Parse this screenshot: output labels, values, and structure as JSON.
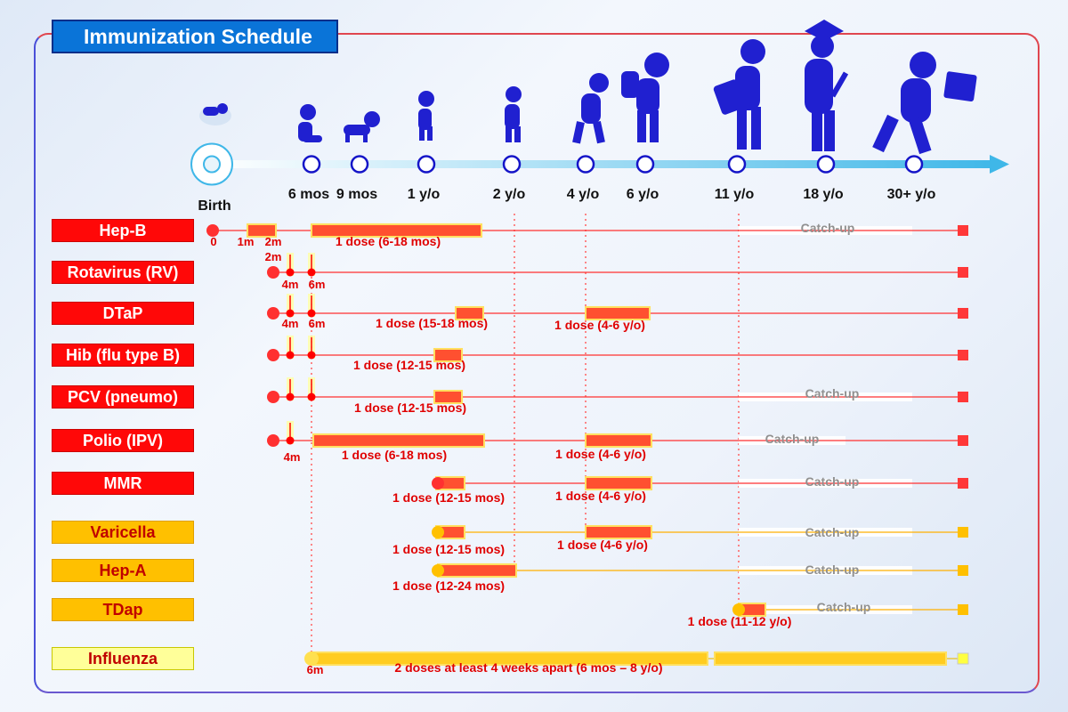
{
  "title": "Immunization Schedule",
  "ages": [
    {
      "label": "Birth",
      "icon": "baby-icon"
    },
    {
      "label": "6 mos",
      "icon": "sitting-baby-icon"
    },
    {
      "label": "9 mos",
      "icon": "crawling-baby-icon"
    },
    {
      "label": "1 y/o",
      "icon": "toddler-icon"
    },
    {
      "label": "2 y/o",
      "icon": "child-icon"
    },
    {
      "label": "4 y/o",
      "icon": "walking-child-icon"
    },
    {
      "label": "6 y/o",
      "icon": "student-backpack-icon"
    },
    {
      "label": "11 y/o",
      "icon": "teen-bag-icon"
    },
    {
      "label": "18 y/o",
      "icon": "graduate-icon"
    },
    {
      "label": "30+ y/o",
      "icon": "adult-briefcase-icon"
    }
  ],
  "vaccines": [
    {
      "name": "Hep-B",
      "category": "red",
      "marks": [
        "0",
        "1m",
        "2m"
      ],
      "doses": [
        "1 dose (6-18 mos)"
      ],
      "catchup": "Catch-up"
    },
    {
      "name": "Rotavirus (RV)",
      "category": "red",
      "marks": [
        "2m",
        "4m",
        "6m"
      ],
      "doses": [],
      "catchup": ""
    },
    {
      "name": "DTaP",
      "category": "red",
      "marks": [
        "4m",
        "6m"
      ],
      "doses": [
        "1 dose (15-18 mos)",
        "1 dose (4-6 y/o)"
      ],
      "catchup": ""
    },
    {
      "name": "Hib (flu type B)",
      "category": "red",
      "marks": [],
      "doses": [
        "1 dose (12-15 mos)"
      ],
      "catchup": ""
    },
    {
      "name": "PCV (pneumo)",
      "category": "red",
      "marks": [],
      "doses": [
        "1 dose (12-15 mos)"
      ],
      "catchup": "Catch-up"
    },
    {
      "name": "Polio (IPV)",
      "category": "red",
      "marks": [
        "4m"
      ],
      "doses": [
        "1 dose (6-18 mos)",
        "1 dose (4-6 y/o)"
      ],
      "catchup": "Catch-up"
    },
    {
      "name": "MMR",
      "category": "red",
      "marks": [],
      "doses": [
        "1 dose (12-15 mos)",
        "1 dose (4-6 y/o)"
      ],
      "catchup": "Catch-up"
    },
    {
      "name": "Varicella",
      "category": "orange",
      "marks": [],
      "doses": [
        "1 dose (12-15 mos)",
        "1 dose (4-6 y/o)"
      ],
      "catchup": "Catch-up"
    },
    {
      "name": "Hep-A",
      "category": "orange",
      "marks": [],
      "doses": [
        "1 dose (12-24 mos)"
      ],
      "catchup": "Catch-up"
    },
    {
      "name": "TDap",
      "category": "orange",
      "marks": [],
      "doses": [
        "1 dose (11-12 y/o)"
      ],
      "catchup": "Catch-up"
    },
    {
      "name": "Influenza",
      "category": "yellow",
      "marks": [
        "6m"
      ],
      "doses": [
        "2 doses at least 4 weeks apart (6 mos – 8 y/o)"
      ],
      "catchup": ""
    }
  ],
  "colors": {
    "red": "#ff0808",
    "bar": "#ff5030",
    "orange": "#ffc000",
    "yellow": "#ffff99",
    "timeline": "#0a74d8",
    "figure": "#2020d0"
  }
}
